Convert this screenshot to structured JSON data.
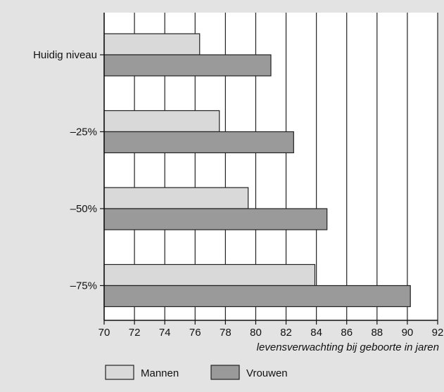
{
  "chart_data": {
    "type": "bar",
    "orientation": "horizontal",
    "categories": [
      "Huidig niveau",
      "–25%",
      "–50%",
      "–75%"
    ],
    "series": [
      {
        "name": "Mannen",
        "values": [
          76.3,
          77.6,
          79.5,
          83.9
        ],
        "color": "#d9d9d9"
      },
      {
        "name": "Vrouwen",
        "values": [
          81.0,
          82.5,
          84.7,
          90.2
        ],
        "color": "#9a9a9a"
      }
    ],
    "xlabel": "levensverwachting bij geboorte in jaren",
    "xlim": [
      70,
      92
    ],
    "xticks": [
      "70",
      "72",
      "74",
      "76",
      "78",
      "80",
      "82",
      "84",
      "86",
      "88",
      "90",
      "92"
    ],
    "grid": "vertical",
    "legend_position": "bottom"
  }
}
